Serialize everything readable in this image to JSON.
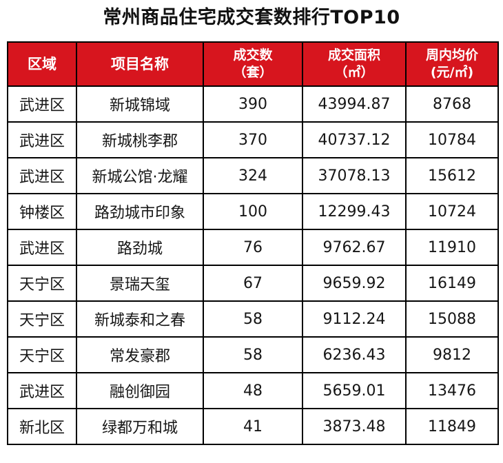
{
  "title": "常州商品住宅成交套数排行TOP10",
  "table": {
    "headers": [
      {
        "line1": "区域",
        "line2": ""
      },
      {
        "line1": "项目名称",
        "line2": ""
      },
      {
        "line1": "成交数",
        "line2": "（套）"
      },
      {
        "line1": "成交面积",
        "line2": "（㎡）"
      },
      {
        "line1": "周内均价",
        "line2": "(元/㎡)"
      }
    ],
    "rows": [
      [
        "武进区",
        "新城锦域",
        "390",
        "43994.87",
        "8768"
      ],
      [
        "武进区",
        "新城桃李郡",
        "370",
        "40737.12",
        "10784"
      ],
      [
        "武进区",
        "新城公馆·龙耀",
        "324",
        "37078.13",
        "15612"
      ],
      [
        "钟楼区",
        "路劲城市印象",
        "100",
        "12299.43",
        "10724"
      ],
      [
        "武进区",
        "路劲城",
        "76",
        "9762.67",
        "11910"
      ],
      [
        "天宁区",
        "景瑞天玺",
        "67",
        "9659.92",
        "16149"
      ],
      [
        "天宁区",
        "新城泰和之春",
        "58",
        "9112.24",
        "15088"
      ],
      [
        "天宁区",
        "常发豪郡",
        "58",
        "6236.43",
        "9812"
      ],
      [
        "武进区",
        "融创御园",
        "48",
        "5659.01",
        "13476"
      ],
      [
        "新北区",
        "绿都万和城",
        "41",
        "3873.48",
        "11849"
      ]
    ]
  },
  "colors": {
    "header_bg": "#d7151e",
    "header_text": "#ffffff",
    "border": "#000000"
  }
}
